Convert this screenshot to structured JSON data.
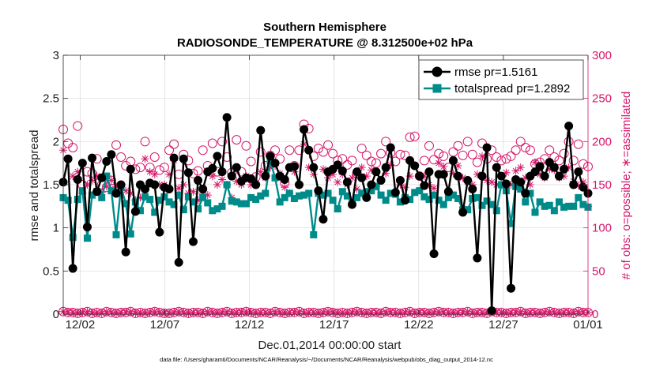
{
  "chart_data": {
    "type": "line",
    "title": "Southern Hemisphere",
    "subtitle": "RADIOSONDE_TEMPERATURE @ 8.312500e+02 hPa",
    "xlabel": "Dec.01,2014 00:00:00 start",
    "ylabel": "rmse and totalspread",
    "y2label": "# of obs: o=possible; ∗=assimilated",
    "footnote": "data file: /Users/gharamti/Documents/NCAR/Reanalysis/~/Documents/NCAR/Reanalysis/webpub/obs_diag_output_2014-12.nc",
    "xlim": [
      1,
      32
    ],
    "ylim": [
      0,
      3
    ],
    "y2lim": [
      0,
      300
    ],
    "xticks": [
      2,
      7,
      12,
      17,
      22,
      27,
      32
    ],
    "xtick_labels": [
      "12/02",
      "12/07",
      "12/12",
      "12/17",
      "12/22",
      "12/27",
      "01/01"
    ],
    "yticks": [
      0,
      0.5,
      1,
      1.5,
      2,
      2.5,
      3
    ],
    "ytick_labels": [
      "0",
      "0.5",
      "1",
      "1.5",
      "2",
      "2.5",
      "3"
    ],
    "y2ticks": [
      0,
      50,
      100,
      150,
      200,
      250,
      300
    ],
    "y2tick_labels": [
      "0",
      "50",
      "100",
      "150",
      "200",
      "250",
      "300"
    ],
    "legend_location": "top-right",
    "colors": {
      "rmse": "#000000",
      "totalspread": "#008b8b",
      "counts": "#d6186b"
    },
    "series": [
      {
        "name": "rmse pr=1.5161",
        "axis": "left",
        "values": [
          1.53,
          1.8,
          0.53,
          1.56,
          1.75,
          1.01,
          1.81,
          1.42,
          1.58,
          1.77,
          1.85,
          1.4,
          1.5,
          0.72,
          1.68,
          1.19,
          1.5,
          1.45,
          1.52,
          1.5,
          0.95,
          1.47,
          1.45,
          1.81,
          0.6,
          1.8,
          1.64,
          0.84,
          1.55,
          1.45,
          1.65,
          1.69,
          1.83,
          1.65,
          2.28,
          1.6,
          1.7,
          1.54,
          1.58,
          1.57,
          1.5,
          2.13,
          1.6,
          1.83,
          1.75,
          1.6,
          1.56,
          1.7,
          1.71,
          1.5,
          2.14,
          1.9,
          1.7,
          1.43,
          1.1,
          1.65,
          1.68,
          1.73,
          1.66,
          1.53,
          1.27,
          1.65,
          1.58,
          1.35,
          1.5,
          1.65,
          1.55,
          1.7,
          1.93,
          1.41,
          1.55,
          1.32,
          1.78,
          1.72,
          1.6,
          1.49,
          1.65,
          0.7,
          1.62,
          1.62,
          1.42,
          1.78,
          1.6,
          1.18,
          1.55,
          1.45,
          0.65,
          1.6,
          1.93,
          0.04,
          1.7,
          1.6,
          1.51,
          0.3,
          1.56,
          1.53,
          1.4,
          1.6,
          1.65,
          1.71,
          1.6,
          1.76,
          1.7,
          1.6,
          1.68,
          2.18,
          1.5,
          1.65,
          1.47,
          1.4
        ]
      },
      {
        "name": "totalspread pr=1.2892",
        "axis": "left",
        "values": [
          1.35,
          1.32,
          0.89,
          1.33,
          1.43,
          0.88,
          1.38,
          1.42,
          1.35,
          1.6,
          1.43,
          0.92,
          1.47,
          1.28,
          0.93,
          1.3,
          1.2,
          1.36,
          1.33,
          1.18,
          1.32,
          1.36,
          1.3,
          1.27,
          1.38,
          1.21,
          1.36,
          1.3,
          1.22,
          1.35,
          1.29,
          1.2,
          1.22,
          1.25,
          1.5,
          1.31,
          1.3,
          1.28,
          1.28,
          1.35,
          1.33,
          1.37,
          1.4,
          1.78,
          1.58,
          1.3,
          1.35,
          1.4,
          1.34,
          1.37,
          1.38,
          1.4,
          0.92,
          1.4,
          1.38,
          1.4,
          1.32,
          1.22,
          1.42,
          1.37,
          1.28,
          1.35,
          1.4,
          1.42,
          1.43,
          1.48,
          1.38,
          1.32,
          1.4,
          1.39,
          1.3,
          1.35,
          1.33,
          1.41,
          1.43,
          1.36,
          1.33,
          1.38,
          1.32,
          1.27,
          1.35,
          1.38,
          1.34,
          1.21,
          1.21,
          1.34,
          1.35,
          1.26,
          1.31,
          1.27,
          1.2,
          1.5,
          1.43,
          1.05,
          1.48,
          1.45,
          1.3,
          1.4,
          1.18,
          1.3,
          1.25,
          1.26,
          1.2,
          1.3,
          1.24,
          1.25,
          1.25,
          1.35,
          1.27,
          1.24
        ]
      },
      {
        "name": "# possible (o)",
        "axis": "right",
        "values": [
          214,
          198,
          193,
          218,
          150,
          165,
          163,
          180,
          150,
          147,
          155,
          196,
          182,
          172,
          177,
          168,
          170,
          200,
          170,
          182,
          167,
          170,
          190,
          197,
          162,
          185,
          178,
          163,
          166,
          190,
          172,
          198,
          165,
          200,
          182,
          164,
          202,
          165,
          195,
          177,
          159,
          188,
          172,
          184,
          190,
          180,
          152,
          190,
          172,
          190,
          220,
          215,
          183,
          192,
          188,
          196,
          186,
          178,
          180,
          173,
          178,
          163,
          192,
          184,
          177,
          175,
          186,
          200,
          187,
          177,
          185,
          184,
          205,
          206,
          160,
          178,
          195,
          179,
          186,
          183,
          170,
          188,
          195,
          184,
          200,
          185,
          176,
          198,
          180,
          190,
          182,
          178,
          180,
          183,
          190,
          200,
          193,
          190,
          174,
          176,
          180,
          190,
          182,
          178,
          186,
          200,
          178,
          197,
          174,
          171
        ]
      },
      {
        "name": "# assimilated (∗)",
        "axis": "right",
        "values": [
          190,
          179,
          160,
          165,
          140,
          150,
          155,
          160,
          141,
          148,
          155,
          148,
          148,
          143,
          140,
          132,
          135,
          180,
          165,
          162,
          150,
          150,
          162,
          178,
          146,
          150,
          140,
          142,
          132,
          140,
          138,
          160,
          150,
          156,
          150,
          135,
          154,
          150,
          160,
          150,
          152,
          165,
          158,
          170,
          172,
          163,
          147,
          140,
          165,
          150,
          197,
          170,
          162,
          143,
          168,
          158,
          162,
          153,
          162,
          150,
          158,
          145,
          170,
          160,
          167,
          148,
          156,
          163,
          173,
          140,
          150,
          147,
          160,
          172,
          161,
          160,
          150,
          146,
          175,
          171,
          140,
          163,
          172,
          158,
          153,
          150,
          162,
          183,
          155,
          153,
          150,
          150,
          164,
          150,
          166,
          170,
          158,
          150,
          176,
          162,
          158,
          168,
          167,
          158,
          160,
          170,
          154,
          149,
          153,
          125
        ]
      },
      {
        "name": "# possible near zero (o)",
        "axis": "right",
        "values": [
          3,
          2,
          2,
          1,
          2,
          3,
          1,
          2,
          1,
          3,
          2,
          1,
          2,
          2,
          3,
          1,
          2,
          1,
          2,
          3,
          2,
          1,
          1,
          2,
          3,
          2,
          1,
          2,
          2,
          1,
          3,
          2,
          1,
          2,
          3,
          1,
          2,
          2,
          3,
          2,
          1,
          2,
          2,
          1,
          3,
          2,
          1,
          2,
          2,
          3,
          1,
          2,
          2,
          1,
          2,
          3,
          2,
          1,
          2,
          1,
          2,
          3,
          2,
          1,
          2,
          2,
          1,
          3,
          2,
          2,
          1,
          2,
          3,
          1,
          2,
          2,
          1,
          2,
          3,
          2,
          2,
          1,
          2,
          2,
          3,
          1,
          2,
          2,
          1,
          3,
          2,
          2,
          1,
          2,
          2,
          3,
          1,
          2,
          2,
          1,
          2,
          3,
          2,
          1,
          2,
          2,
          1,
          3,
          2,
          2
        ]
      },
      {
        "name": "# assimilated near zero (∗)",
        "axis": "right",
        "values": [
          3,
          2,
          2,
          1,
          2,
          3,
          1,
          2,
          1,
          3,
          2,
          1,
          2,
          2,
          3,
          1,
          2,
          1,
          2,
          3,
          2,
          1,
          1,
          2,
          3,
          2,
          1,
          2,
          2,
          1,
          3,
          2,
          1,
          2,
          3,
          1,
          2,
          2,
          3,
          2,
          1,
          2,
          2,
          1,
          3,
          2,
          1,
          2,
          2,
          3,
          1,
          2,
          2,
          1,
          2,
          3,
          2,
          1,
          2,
          1,
          2,
          3,
          2,
          1,
          2,
          2,
          1,
          3,
          2,
          2,
          1,
          2,
          3,
          1,
          2,
          2,
          1,
          2,
          3,
          2,
          2,
          1,
          2,
          2,
          3,
          1,
          2,
          2,
          1,
          3,
          2,
          2,
          1,
          2,
          2,
          3,
          1,
          2,
          2,
          1,
          2,
          3,
          2,
          1,
          2,
          2,
          1,
          3,
          2,
          2
        ]
      }
    ]
  }
}
